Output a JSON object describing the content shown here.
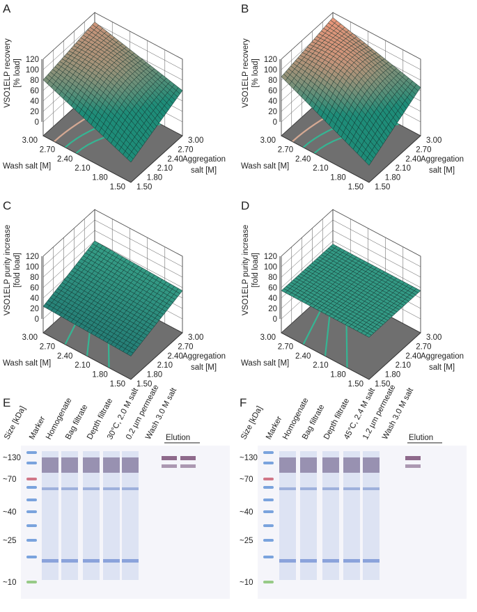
{
  "figure": {
    "panels": [
      {
        "letter": "A",
        "z_label": [
          "VSO1ELP recovery",
          "[% load]"
        ],
        "z_ticks": [
          0,
          20,
          40,
          60,
          80,
          100,
          120
        ],
        "wash_label": "Wash salt [M]",
        "wash_ticks": [
          "1.50",
          "1.80",
          "2.10",
          "2.40",
          "2.70",
          "3.00"
        ],
        "agg_label": [
          "Aggregation",
          "salt [M]"
        ],
        "agg_ticks": [
          "1.50",
          "1.80",
          "2.10",
          "2.40",
          "2.70",
          "3.00"
        ]
      },
      {
        "letter": "B",
        "z_label": [
          "VSO1ELP recovery",
          "[% load]"
        ],
        "z_ticks": [
          0,
          20,
          40,
          60,
          80,
          100,
          120
        ],
        "wash_label": "Wash salt [M]",
        "wash_ticks": [
          "1.50",
          "1.80",
          "2.10",
          "2.40",
          "2.70",
          "3.00"
        ],
        "agg_label": [
          "Aggregation",
          "salt [M]"
        ],
        "agg_ticks": [
          "1.50",
          "1.80",
          "2.10",
          "2.40",
          "2.70",
          "3.00"
        ]
      },
      {
        "letter": "C",
        "z_label": [
          "VSO1ELP purity increase",
          "[fold load]"
        ],
        "z_ticks": [
          0,
          20,
          40,
          60,
          80,
          100,
          120
        ],
        "wash_label": "Wash salt [M]",
        "wash_ticks": [
          "1.50",
          "1.80",
          "2.10",
          "2.40",
          "2.70",
          "3.00"
        ],
        "agg_label": [
          "Aggregation",
          "salt [M]"
        ],
        "agg_ticks": [
          "1.50",
          "1.80",
          "2.10",
          "2.40",
          "2.70",
          "3.00"
        ]
      },
      {
        "letter": "D",
        "z_label": [
          "VSO1ELP purity increase",
          "[fold load]"
        ],
        "z_ticks": [
          0,
          20,
          40,
          60,
          80,
          100,
          120
        ],
        "wash_label": "Wash salt [M]",
        "wash_ticks": [
          "1.50",
          "1.80",
          "2.10",
          "2.40",
          "2.70",
          "3.00"
        ],
        "agg_label": [
          "Aggregation",
          "salt [M]"
        ],
        "agg_ticks": [
          "1.50",
          "1.80",
          "2.10",
          "2.40",
          "2.70",
          "3.00"
        ]
      }
    ],
    "gels": [
      {
        "letter": "E",
        "lane_labels": [
          "Size [kDa]",
          "Marker",
          "Homogenate",
          "Bag filtrate",
          "Depth filtrate",
          "30°C, 2.0 M salt",
          "0.2 µm permeate",
          "Wash 3.0 M salt"
        ],
        "elution": "Elution",
        "sizes": [
          "~130",
          "~70",
          "~40",
          "~25",
          "~10"
        ]
      },
      {
        "letter": "F",
        "lane_labels": [
          "Size [kDa]",
          "Marker",
          "Homogenate",
          "Bag filtrate",
          "Depth filtrate",
          "45°C, 2.4 M salt",
          "1.2 µm permeate",
          "Wash 3.0 M salt"
        ],
        "elution": "Elution",
        "sizes": [
          "~130",
          "~70",
          "~40",
          "~25",
          "~10"
        ]
      }
    ]
  }
}
